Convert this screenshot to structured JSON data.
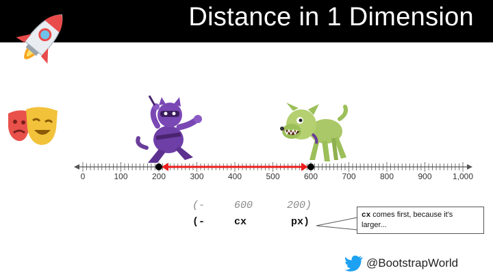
{
  "slide": {
    "title": "Distance in 1 Dimension"
  },
  "number_line": {
    "min": 0,
    "max": 1000,
    "step": 100,
    "tick_labels": [
      "0",
      "100",
      "200",
      "300",
      "400",
      "500",
      "600",
      "700",
      "800",
      "900",
      "1,000"
    ],
    "points": [
      200,
      600
    ],
    "segment": {
      "from": 200,
      "to": 600,
      "color": "#ee1c1c"
    }
  },
  "expression_values": {
    "open": "(-",
    "a": "600",
    "b": "200)"
  },
  "expression_names": {
    "open": "(-",
    "a": "cx",
    "b": "px)"
  },
  "callout": {
    "code": "cx",
    "text": " comes first, because it's larger..."
  },
  "footer": {
    "handle": "@BootstrapWorld"
  },
  "icons": [
    "rocket-icon",
    "theater-masks-icon",
    "ninja-cat-character",
    "dog-character",
    "twitter-bird-icon"
  ]
}
